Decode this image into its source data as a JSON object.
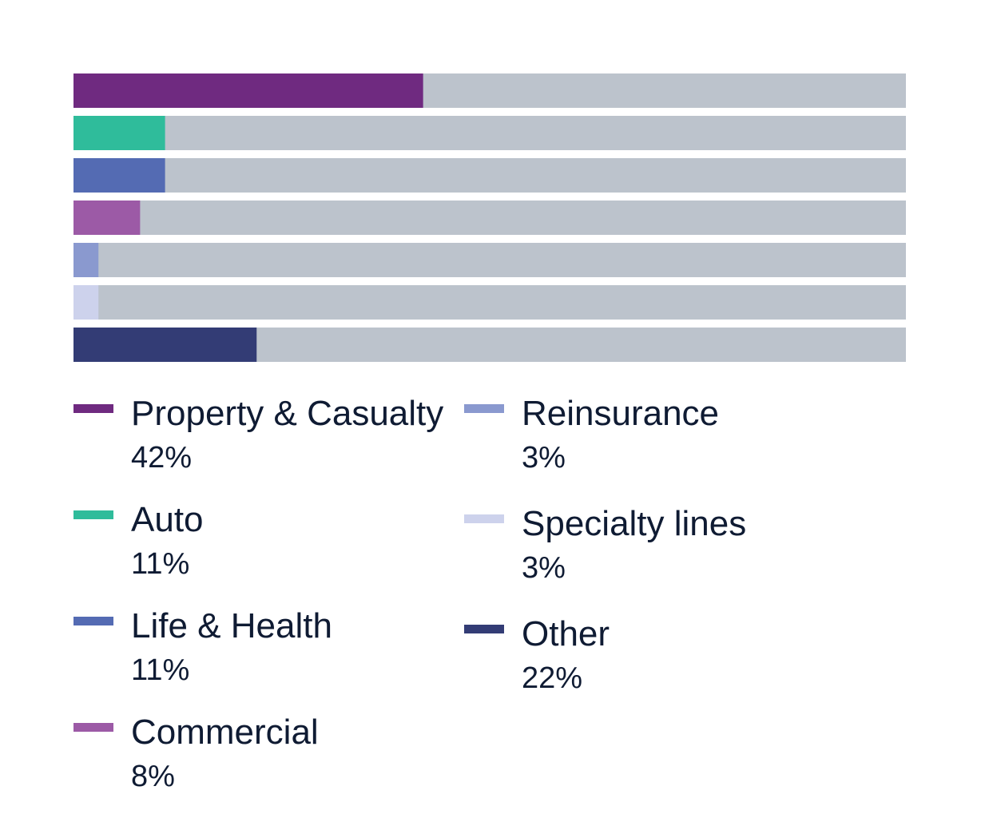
{
  "chart_data": {
    "type": "bar",
    "orientation": "horizontal",
    "stacked_track": true,
    "xlim": [
      0,
      100
    ],
    "track_color": "#bcc3cc",
    "categories": [
      "Property & Casualty",
      "Auto",
      "Life & Health",
      "Commercial",
      "Reinsurance",
      "Specialty lines",
      "Other"
    ],
    "values": [
      42,
      11,
      11,
      8,
      3,
      3,
      22
    ],
    "colors": [
      "#6f2a80",
      "#2fbc9b",
      "#546bb3",
      "#9c5aa6",
      "#8a99cf",
      "#cdd2ec",
      "#333c75"
    ],
    "value_labels": [
      "42%",
      "11%",
      "11%",
      "8%",
      "3%",
      "3%",
      "22%"
    ],
    "legend_placement": "bottom",
    "grid": false
  }
}
